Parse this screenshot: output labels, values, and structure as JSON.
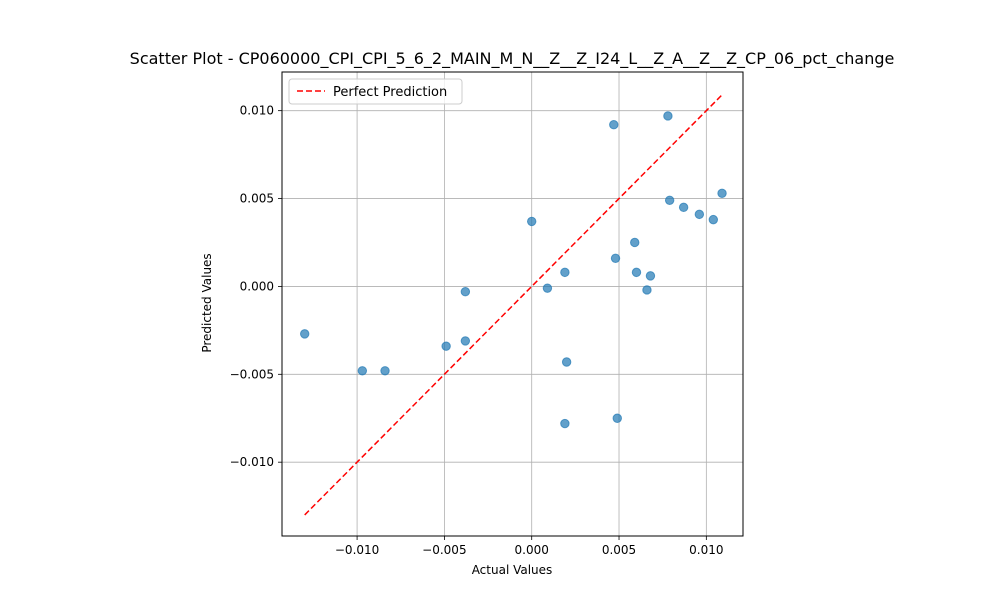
{
  "chart_data": {
    "type": "scatter",
    "title": "Scatter Plot - CP060000_CPI_CPI_5_6_2_MAIN_M_N__Z__Z_I24_L__Z_A__Z__Z_CP_06_pct_change",
    "xlabel": "Actual Values",
    "ylabel": "Predicted Values",
    "xlim": [
      -0.0143,
      0.0121
    ],
    "ylim": [
      -0.0142,
      0.0122
    ],
    "xticks": [
      -0.01,
      -0.005,
      0.0,
      0.005,
      0.01
    ],
    "yticks": [
      -0.01,
      -0.005,
      0.0,
      0.005,
      0.01
    ],
    "xtick_labels": [
      "−0.010",
      "−0.005",
      "0.000",
      "0.005",
      "0.010"
    ],
    "ytick_labels": [
      "−0.010",
      "−0.005",
      "0.000",
      "0.005",
      "0.010"
    ],
    "grid": true,
    "legend_position": "top-left",
    "point_color": "#1f77b4",
    "line_color": "#ff0000",
    "series": [
      {
        "kind": "scatter",
        "points": [
          [
            -0.013,
            -0.0027
          ],
          [
            -0.0097,
            -0.0048
          ],
          [
            -0.0084,
            -0.0048
          ],
          [
            -0.0049,
            -0.0034
          ],
          [
            -0.0038,
            -0.0031
          ],
          [
            -0.0038,
            -0.0003
          ],
          [
            0.0,
            0.0037
          ],
          [
            0.0009,
            -0.0001
          ],
          [
            0.0019,
            0.0008
          ],
          [
            0.002,
            -0.0043
          ],
          [
            0.0019,
            -0.0078
          ],
          [
            0.0047,
            0.0092
          ],
          [
            0.0048,
            0.0016
          ],
          [
            0.0049,
            -0.0075
          ],
          [
            0.0059,
            0.0025
          ],
          [
            0.006,
            0.0008
          ],
          [
            0.0066,
            -0.0002
          ],
          [
            0.0068,
            0.0006
          ],
          [
            0.0078,
            0.0097
          ],
          [
            0.0079,
            0.0049
          ],
          [
            0.0087,
            0.0045
          ],
          [
            0.0096,
            0.0041
          ],
          [
            0.0104,
            0.0038
          ],
          [
            0.0109,
            0.0053
          ]
        ]
      },
      {
        "kind": "line",
        "name": "Perfect Prediction",
        "style": "dashed",
        "points": [
          [
            -0.013,
            -0.013
          ],
          [
            0.0109,
            0.0109
          ]
        ]
      }
    ]
  }
}
